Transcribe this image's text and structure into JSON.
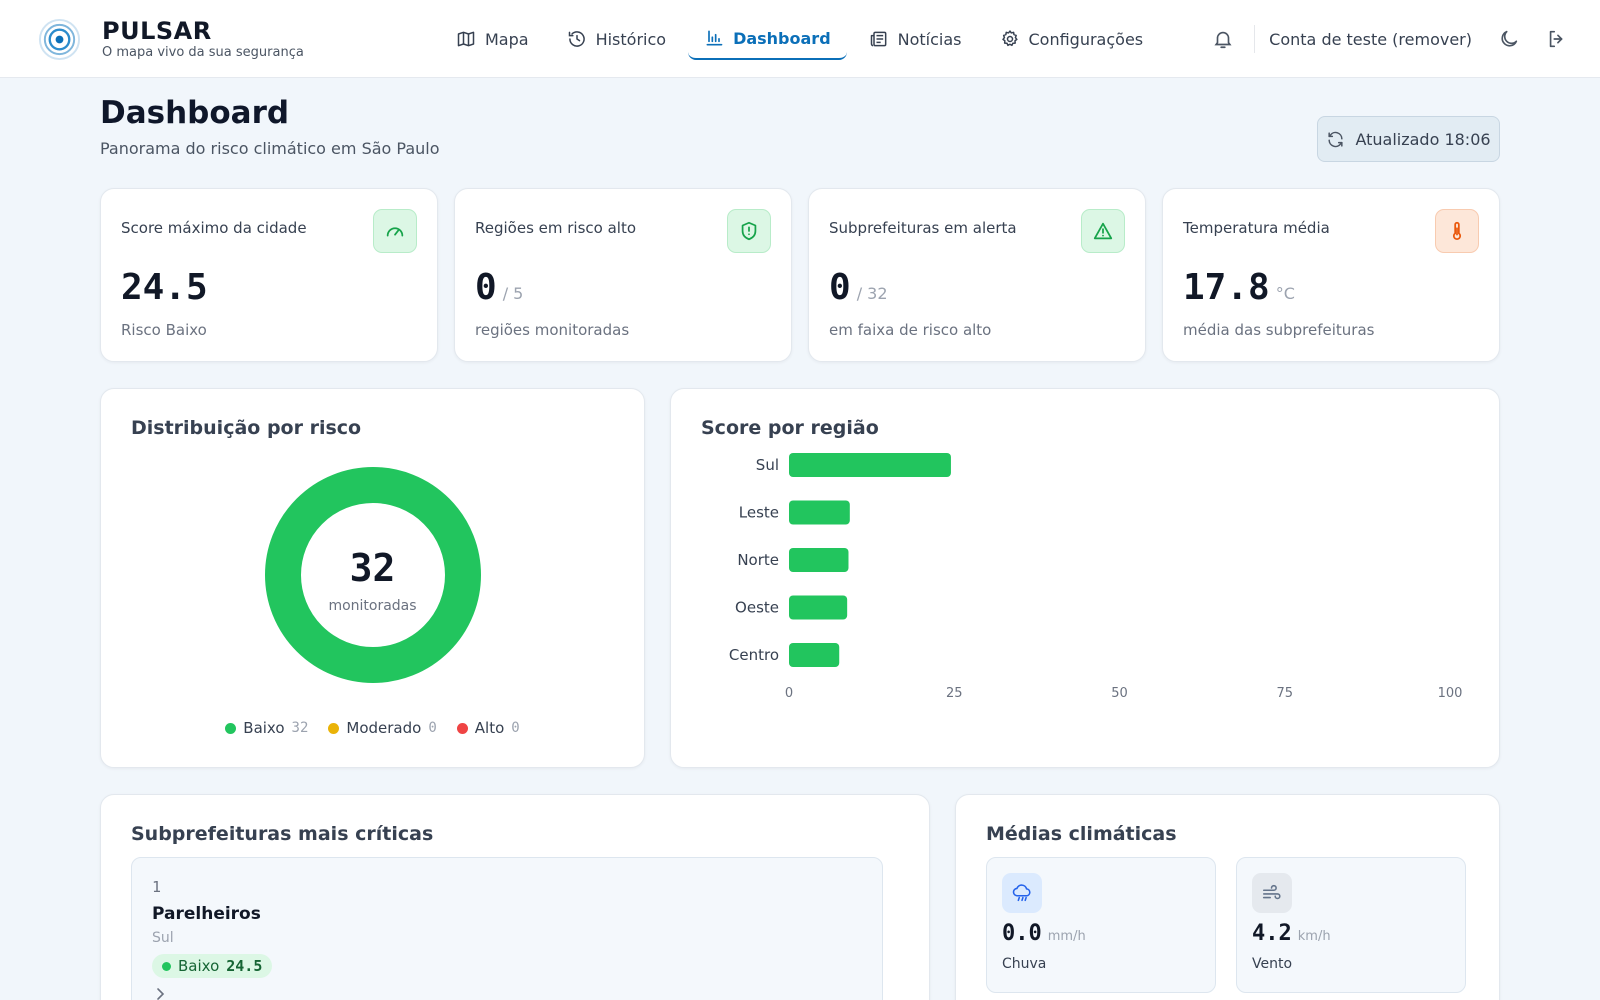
{
  "header": {
    "brand_name": "PULSAR",
    "brand_tagline": "O mapa vivo da sua segurança",
    "nav": [
      {
        "label": "Mapa",
        "icon": "map-icon",
        "active": false
      },
      {
        "label": "Histórico",
        "icon": "history-icon",
        "active": false
      },
      {
        "label": "Dashboard",
        "icon": "bar-chart-icon",
        "active": true
      },
      {
        "label": "Notícias",
        "icon": "newspaper-icon",
        "active": false
      },
      {
        "label": "Configurações",
        "icon": "gear-icon",
        "active": false
      }
    ],
    "account_label": "Conta de teste (remover)",
    "accent_color": "#0b6fb8"
  },
  "page": {
    "title": "Dashboard",
    "subtitle": "Panorama do risco climático em São Paulo",
    "refresh_label": "Atualizado 18:06"
  },
  "stats": [
    {
      "label": "Score máximo da cidade",
      "value": "24.5",
      "unit": "",
      "footer": "Risco Baixo",
      "icon": "gauge-icon"
    },
    {
      "label": "Regiões em risco alto",
      "value": "0",
      "unit": "/ 5",
      "footer": "regiões monitoradas",
      "icon": "shield-alert-icon"
    },
    {
      "label": "Subprefeituras em alerta",
      "value": "0",
      "unit": "/ 32",
      "footer": "em faixa de risco alto",
      "icon": "warning-triangle-icon"
    },
    {
      "label": "Temperatura média",
      "value": "17.8",
      "unit": "°C",
      "footer": "média das subprefeituras",
      "icon": "thermometer-icon"
    }
  ],
  "distribution": {
    "title": "Distribuição por risco",
    "center_value": "32",
    "center_label": "monitoradas",
    "legend": [
      {
        "label": "Baixo",
        "count": "32",
        "color": "#22c55e"
      },
      {
        "label": "Moderado",
        "count": "0",
        "color": "#eab308"
      },
      {
        "label": "Alto",
        "count": "0",
        "color": "#ef4444"
      }
    ]
  },
  "region_scores": {
    "title": "Score por região"
  },
  "chart_data": [
    {
      "type": "pie",
      "categories": [
        "Baixo",
        "Moderado",
        "Alto"
      ],
      "values": [
        32,
        0,
        0
      ],
      "colors": [
        "#22c55e",
        "#eab308",
        "#ef4444"
      ],
      "donut": true
    },
    {
      "type": "bar",
      "orientation": "horizontal",
      "categories": [
        "Sul",
        "Leste",
        "Norte",
        "Oeste",
        "Centro"
      ],
      "values": [
        24.5,
        9.2,
        9.0,
        8.8,
        7.6
      ],
      "xlim": [
        0,
        100
      ],
      "xticks": [
        "0",
        "25",
        "50",
        "75",
        "100"
      ],
      "bar_color": "#22c55e",
      "grid": false
    }
  ],
  "critical": {
    "title": "Subprefeituras mais críticas",
    "items": [
      {
        "rank": "1",
        "name": "Parelheiros",
        "region": "Sul",
        "risk": "Baixo",
        "score": "24.5"
      }
    ]
  },
  "climate": {
    "title": "Médias climáticas",
    "items": [
      {
        "value": "0.0",
        "unit": "mm/h",
        "label": "Chuva",
        "icon": "rain-icon"
      },
      {
        "value": "4.2",
        "unit": "km/h",
        "label": "Vento",
        "icon": "wind-icon"
      }
    ]
  }
}
